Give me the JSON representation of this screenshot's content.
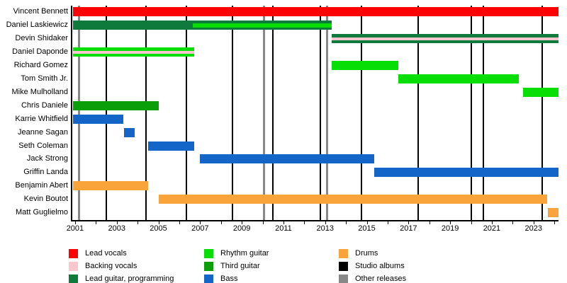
{
  "chart_data": {
    "type": "timeline",
    "description": "Band members timeline with roles as colored bars, studio albums as black vertical lines, other releases as gray vertical lines",
    "x_axis": {
      "domain": [
        2000.9,
        2024.2
      ],
      "tick_years_start": 2001,
      "tick_years_end": 2024,
      "tick_interval_years": 1,
      "label_interval_years": 2,
      "tick_labels": [
        "2001",
        "2003",
        "2005",
        "2007",
        "2009",
        "2011",
        "2013",
        "2015",
        "2017",
        "2019",
        "2021",
        "2023"
      ]
    },
    "members": [
      {
        "name": "Vincent Bennett",
        "bars": [
          {
            "role": "lead_vocals",
            "start": 2000.9,
            "end": 2024.2
          }
        ],
        "stripes": []
      },
      {
        "name": "Daniel Laskiewicz",
        "bars": [
          {
            "role": "lead_guitar",
            "start": 2000.9,
            "end": 2013.3
          }
        ],
        "stripes": [
          {
            "role": "rhythm_guitar",
            "start": 2006.65,
            "end": 2013.3
          }
        ]
      },
      {
        "name": "Devin Shidaker",
        "bars": [
          {
            "role": "lead_guitar",
            "start": 2013.3,
            "end": 2024.2
          }
        ],
        "stripes": [
          {
            "role": "backing_vocals",
            "start": 2013.3,
            "end": 2024.2
          }
        ]
      },
      {
        "name": "Daniel Daponde",
        "bars": [
          {
            "role": "rhythm_guitar",
            "start": 2000.9,
            "end": 2006.7
          }
        ],
        "stripes": [
          {
            "role": "backing_vocals",
            "start": 2000.9,
            "end": 2006.7
          }
        ]
      },
      {
        "name": "Richard Gomez",
        "bars": [
          {
            "role": "rhythm_guitar",
            "start": 2013.3,
            "end": 2016.5
          }
        ],
        "stripes": []
      },
      {
        "name": "Tom Smith Jr.",
        "bars": [
          {
            "role": "rhythm_guitar",
            "start": 2016.5,
            "end": 2022.3
          }
        ],
        "stripes": []
      },
      {
        "name": "Mike Mulholland",
        "bars": [
          {
            "role": "rhythm_guitar",
            "start": 2022.5,
            "end": 2024.2
          }
        ],
        "stripes": []
      },
      {
        "name": "Chris Daniele",
        "bars": [
          {
            "role": "third_guitar",
            "start": 2000.9,
            "end": 2005.0
          }
        ],
        "stripes": []
      },
      {
        "name": "Karrie Whitfield",
        "bars": [
          {
            "role": "bass",
            "start": 2000.9,
            "end": 2003.3
          }
        ],
        "stripes": []
      },
      {
        "name": "Jeanne Sagan",
        "bars": [
          {
            "role": "bass",
            "start": 2003.35,
            "end": 2003.85
          }
        ],
        "stripes": []
      },
      {
        "name": "Seth Coleman",
        "bars": [
          {
            "role": "bass",
            "start": 2004.5,
            "end": 2006.7
          }
        ],
        "stripes": []
      },
      {
        "name": "Jack Strong",
        "bars": [
          {
            "role": "bass",
            "start": 2007.0,
            "end": 2015.35
          }
        ],
        "stripes": []
      },
      {
        "name": "Griffin Landa",
        "bars": [
          {
            "role": "bass",
            "start": 2015.35,
            "end": 2024.2
          }
        ],
        "stripes": []
      },
      {
        "name": "Benjamin Abert",
        "bars": [
          {
            "role": "drums",
            "start": 2000.9,
            "end": 2004.5
          }
        ],
        "stripes": []
      },
      {
        "name": "Kevin Boutot",
        "bars": [
          {
            "role": "drums",
            "start": 2005.0,
            "end": 2023.65
          }
        ],
        "stripes": []
      },
      {
        "name": "Matt Guglielmo",
        "bars": [
          {
            "role": "drums",
            "start": 2023.7,
            "end": 2024.2
          }
        ],
        "stripes": []
      }
    ],
    "studio_album_years": [
      2002.5,
      2004.4,
      2006.35,
      2008.55,
      2010.5,
      2012.77,
      2014.74,
      2017.46,
      2020.0,
      2020.6,
      2023.4
    ],
    "other_release_years": [
      2001.2,
      2010.05,
      2013.1
    ]
  },
  "legend": {
    "columns": [
      {
        "items": [
          {
            "label": "Lead vocals",
            "role": "lead_vocals"
          },
          {
            "label": "Backing vocals",
            "role": "backing_vocals"
          },
          {
            "label": "Lead guitar, programming",
            "role": "lead_guitar"
          }
        ]
      },
      {
        "items": [
          {
            "label": "Rhythm guitar",
            "role": "rhythm_guitar"
          },
          {
            "label": "Third guitar",
            "role": "third_guitar"
          },
          {
            "label": "Bass",
            "role": "bass"
          }
        ]
      },
      {
        "items": [
          {
            "label": "Drums",
            "role": "drums"
          },
          {
            "label": "Studio albums",
            "role": "studio_albums"
          },
          {
            "label": "Other releases",
            "role": "other_releases"
          }
        ]
      }
    ]
  },
  "colors": {
    "lead_vocals": "#fe0000",
    "backing_vocals": "#f9c6cd",
    "lead_guitar": "#0e7a3c",
    "rhythm_guitar": "#06de06",
    "third_guitar": "#0a9f0a",
    "bass": "#1465c8",
    "drums": "#f9a43a",
    "studio_albums": "#000000",
    "other_releases": "#888888"
  }
}
